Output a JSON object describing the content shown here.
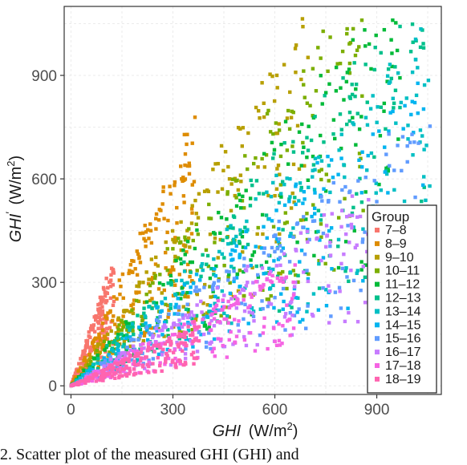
{
  "chart_data": {
    "type": "scatter",
    "title": "",
    "xlabel": "GHI",
    "xlabel_unit": "(W/m",
    "xlabel_sup": "2",
    "xlabel_close": ")",
    "ylabel": "GHI",
    "ylabel_prime": "′",
    "ylabel_unit": "(W/m",
    "ylabel_sup": "2",
    "ylabel_close": ")",
    "xlim": [
      -20,
      1090
    ],
    "ylim": [
      -25,
      1100
    ],
    "xticks": [
      0,
      300,
      600,
      900
    ],
    "xtick_labels": [
      "0",
      "300",
      "600",
      "900"
    ],
    "yticks": [
      0,
      300,
      600,
      900
    ],
    "ytick_labels": [
      "0",
      "300",
      "600",
      "900"
    ],
    "grid": true,
    "legend": {
      "title": "Group",
      "placement": "bottom-right"
    },
    "series": [
      {
        "name": "7–8",
        "color": "#F8766D",
        "slope": 2.6,
        "ymax": 330
      },
      {
        "name": "8–9",
        "color": "#DE8C00",
        "slope": 1.9,
        "ymax": 700
      },
      {
        "name": "9–10",
        "color": "#B79F00",
        "slope": 1.4,
        "ymax": 980
      },
      {
        "name": "10–11",
        "color": "#7CAE00",
        "slope": 1.22,
        "ymax": 1050
      },
      {
        "name": "11–12",
        "color": "#00BA38",
        "slope": 1.08,
        "ymax": 1050
      },
      {
        "name": "12–13",
        "color": "#00C08B",
        "slope": 0.98,
        "ymax": 1030
      },
      {
        "name": "13–14",
        "color": "#00BFC4",
        "slope": 0.88,
        "ymax": 980
      },
      {
        "name": "14–15",
        "color": "#00B4F0",
        "slope": 0.78,
        "ymax": 880
      },
      {
        "name": "15–16",
        "color": "#619CFF",
        "slope": 0.68,
        "ymax": 720
      },
      {
        "name": "16–17",
        "color": "#C77CFF",
        "slope": 0.58,
        "ymax": 520
      },
      {
        "name": "17–18",
        "color": "#F564E3",
        "slope": 0.5,
        "ymax": 330
      },
      {
        "name": "18–19",
        "color": "#FF64B0",
        "slope": 0.45,
        "ymax": 170
      }
    ]
  },
  "caption": "2. Scatter plot of the measured  GHI (GHI) and"
}
